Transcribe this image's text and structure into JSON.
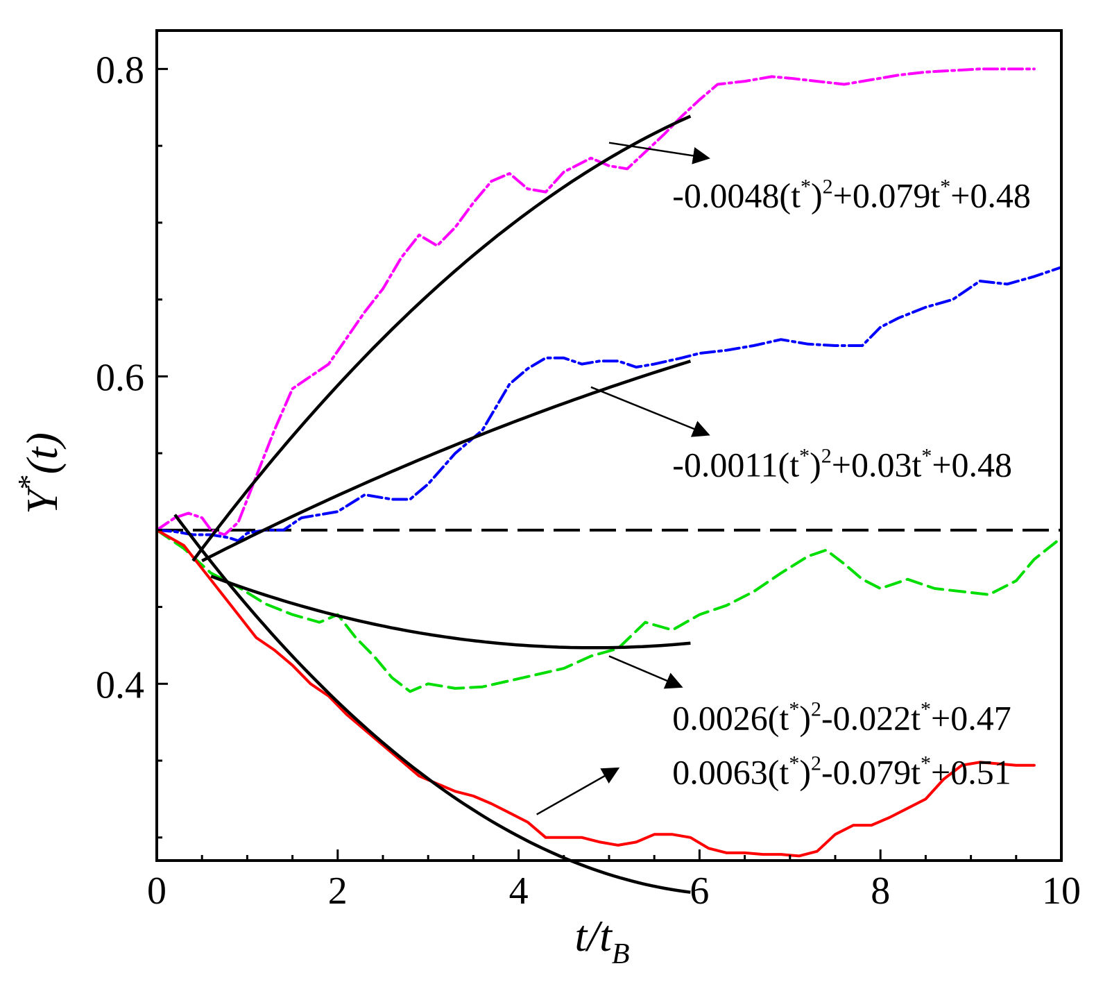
{
  "chart_data": {
    "type": "line",
    "xlabel": "t/t",
    "xlabel_subscript": "B",
    "ylabel": "Y",
    "ylabel_superscript": "*",
    "ylabel_arg": "(t)",
    "xlim": [
      0,
      10
    ],
    "ylim": [
      0.285,
      0.825
    ],
    "x_ticks": [
      0,
      2,
      4,
      6,
      8,
      10
    ],
    "x_tick_labels": [
      "0",
      "2",
      "4",
      "6",
      "8",
      "10"
    ],
    "y_ticks": [
      0.4,
      0.6,
      0.8
    ],
    "y_tick_labels": [
      "0.4",
      "0.6",
      "0.8"
    ],
    "reference_y": 0.5,
    "series": [
      {
        "name": "magenta",
        "color": "#ff00ff",
        "style": "dashdot",
        "x": [
          0,
          0.2,
          0.35,
          0.5,
          0.6,
          0.75,
          0.9,
          1.1,
          1.3,
          1.5,
          1.7,
          1.9,
          2.1,
          2.3,
          2.5,
          2.7,
          2.9,
          3.1,
          3.3,
          3.5,
          3.7,
          3.9,
          4.1,
          4.3,
          4.5,
          4.8,
          5.0,
          5.2,
          5.4,
          5.6,
          5.8,
          6.0,
          6.2,
          6.5,
          6.8,
          7.0,
          7.3,
          7.6,
          7.9,
          8.2,
          8.5,
          8.8,
          9.1,
          9.4,
          9.7
        ],
        "y": [
          0.5,
          0.508,
          0.511,
          0.508,
          0.5,
          0.497,
          0.505,
          0.535,
          0.565,
          0.592,
          0.6,
          0.608,
          0.625,
          0.642,
          0.657,
          0.677,
          0.692,
          0.685,
          0.697,
          0.713,
          0.727,
          0.732,
          0.722,
          0.72,
          0.733,
          0.742,
          0.737,
          0.735,
          0.746,
          0.757,
          0.769,
          0.78,
          0.79,
          0.792,
          0.795,
          0.794,
          0.792,
          0.79,
          0.793,
          0.796,
          0.798,
          0.799,
          0.8,
          0.8,
          0.8
        ]
      },
      {
        "name": "blue",
        "color": "#0000ff",
        "style": "dashdot",
        "x": [
          0,
          0.2,
          0.4,
          0.6,
          0.8,
          0.9,
          1.0,
          1.2,
          1.4,
          1.6,
          1.8,
          2.0,
          2.3,
          2.6,
          2.8,
          3.0,
          3.3,
          3.6,
          3.9,
          4.1,
          4.3,
          4.5,
          4.7,
          4.9,
          5.1,
          5.3,
          5.5,
          5.8,
          6.0,
          6.3,
          6.6,
          6.9,
          7.2,
          7.5,
          7.8,
          8.0,
          8.2,
          8.5,
          8.8,
          9.1,
          9.4,
          9.7,
          10.0
        ],
        "y": [
          0.5,
          0.499,
          0.497,
          0.497,
          0.495,
          0.493,
          0.498,
          0.5,
          0.5,
          0.508,
          0.51,
          0.512,
          0.523,
          0.52,
          0.52,
          0.53,
          0.55,
          0.565,
          0.595,
          0.605,
          0.612,
          0.612,
          0.608,
          0.61,
          0.61,
          0.606,
          0.608,
          0.612,
          0.615,
          0.617,
          0.62,
          0.624,
          0.621,
          0.62,
          0.62,
          0.632,
          0.638,
          0.645,
          0.65,
          0.662,
          0.66,
          0.665,
          0.671
        ]
      },
      {
        "name": "green",
        "color": "#00dd00",
        "style": "dashed",
        "x": [
          0,
          0.3,
          0.6,
          0.9,
          1.2,
          1.5,
          1.8,
          2.0,
          2.2,
          2.4,
          2.6,
          2.8,
          3.0,
          3.3,
          3.6,
          3.9,
          4.2,
          4.5,
          4.8,
          5.1,
          5.4,
          5.7,
          6.0,
          6.3,
          6.6,
          6.9,
          7.2,
          7.4,
          7.6,
          7.8,
          8.0,
          8.3,
          8.6,
          8.9,
          9.2,
          9.5,
          9.7,
          10.0
        ],
        "y": [
          0.5,
          0.488,
          0.472,
          0.463,
          0.452,
          0.445,
          0.44,
          0.445,
          0.43,
          0.418,
          0.404,
          0.395,
          0.4,
          0.397,
          0.398,
          0.402,
          0.406,
          0.41,
          0.418,
          0.423,
          0.44,
          0.435,
          0.445,
          0.451,
          0.46,
          0.472,
          0.483,
          0.487,
          0.478,
          0.468,
          0.462,
          0.468,
          0.462,
          0.46,
          0.458,
          0.467,
          0.481,
          0.495
        ]
      },
      {
        "name": "red",
        "color": "#ff0000",
        "style": "solid",
        "x": [
          0,
          0.3,
          0.5,
          0.7,
          0.9,
          1.1,
          1.3,
          1.5,
          1.7,
          1.9,
          2.1,
          2.3,
          2.5,
          2.7,
          2.9,
          3.1,
          3.3,
          3.5,
          3.7,
          3.9,
          4.1,
          4.3,
          4.5,
          4.7,
          4.9,
          5.1,
          5.3,
          5.5,
          5.7,
          5.9,
          6.1,
          6.3,
          6.5,
          6.7,
          6.9,
          7.1,
          7.3,
          7.5,
          7.7,
          7.9,
          8.1,
          8.3,
          8.5,
          8.7,
          8.9,
          9.1,
          9.3,
          9.5,
          9.7
        ],
        "y": [
          0.5,
          0.49,
          0.475,
          0.46,
          0.445,
          0.43,
          0.422,
          0.412,
          0.4,
          0.392,
          0.38,
          0.37,
          0.36,
          0.35,
          0.34,
          0.335,
          0.33,
          0.327,
          0.322,
          0.316,
          0.31,
          0.3,
          0.3,
          0.3,
          0.297,
          0.295,
          0.297,
          0.302,
          0.302,
          0.3,
          0.293,
          0.29,
          0.29,
          0.289,
          0.289,
          0.288,
          0.291,
          0.302,
          0.308,
          0.308,
          0.313,
          0.319,
          0.325,
          0.338,
          0.347,
          0.349,
          0.348,
          0.347,
          0.347
        ]
      }
    ],
    "fits": [
      {
        "name": "fit-magenta",
        "a": -0.0048,
        "b": 0.079,
        "c": 0.48,
        "t_range": [
          0.4,
          5.9
        ],
        "x_offset": 0.4
      },
      {
        "name": "fit-blue",
        "a": -0.0011,
        "b": 0.03,
        "c": 0.48,
        "t_range": [
          0.5,
          5.9
        ],
        "x_offset": 0.5
      },
      {
        "name": "fit-green",
        "a": 0.0026,
        "b": -0.022,
        "c": 0.47,
        "t_range": [
          0.6,
          5.9
        ],
        "x_offset": 0.6
      },
      {
        "name": "fit-red",
        "a": 0.0063,
        "b": -0.079,
        "c": 0.51,
        "t_range": [
          0.2,
          5.9
        ],
        "x_offset": 0.2
      }
    ],
    "annotations": [
      {
        "name": "label-magenta",
        "prefix": "-0.0048(t",
        "sup1": "*",
        "mid": ")",
        "sup2": "2",
        "mid2": "+0.079t",
        "sup3": "*",
        "suffix": "+0.48",
        "text_xy": [
          5.7,
          0.71
        ],
        "arrow_from": [
          5.0,
          0.752
        ],
        "arrow_to": [
          6.1,
          0.742
        ]
      },
      {
        "name": "label-blue",
        "prefix": "-0.0011(t",
        "sup1": "*",
        "mid": ")",
        "sup2": "2",
        "mid2": "+0.03t",
        "sup3": "*",
        "suffix": "+0.48",
        "text_xy": [
          5.7,
          0.535
        ],
        "arrow_from": [
          4.8,
          0.593
        ],
        "arrow_to": [
          6.1,
          0.562
        ]
      },
      {
        "name": "label-green",
        "prefix": "0.0026(t",
        "sup1": "*",
        "mid": ")",
        "sup2": "2",
        "mid2": "-0.022t",
        "sup3": "*",
        "suffix": "+0.47",
        "text_xy": [
          5.7,
          0.37
        ],
        "arrow_from": [
          5.0,
          0.418
        ],
        "arrow_to": [
          5.8,
          0.398
        ]
      },
      {
        "name": "label-red",
        "prefix": "0.0063(t",
        "sup1": "*",
        "mid": ")",
        "sup2": "2",
        "mid2": "-0.079t",
        "sup3": "*",
        "suffix": "+0.51",
        "text_xy": [
          5.7,
          0.335
        ],
        "arrow_from": [
          4.2,
          0.315
        ],
        "arrow_to": [
          5.1,
          0.345
        ]
      }
    ]
  }
}
